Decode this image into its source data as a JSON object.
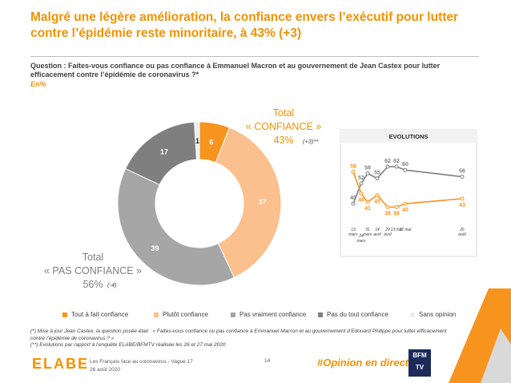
{
  "header": {
    "title": "Malgré une légère amélioration, la confiance envers l’exécutif pour lutter contre l’épidémie reste minoritaire, à 43% (+3)"
  },
  "question": {
    "text": "Question : Faites-vous confiance ou pas confiance à Emmanuel Macron et au gouvernement de Jean Castex pour lutter efficacement contre l’épidémie de coronavirus ?*",
    "unit": "En%"
  },
  "chart_data": [
    {
      "type": "pie",
      "categories": [
        "Tout à fait confiance",
        "Plutôt confiance",
        "Pas vraiment confiance",
        "Pas du tout confiance",
        "Sans opinion"
      ],
      "values": [
        6,
        37,
        39,
        17,
        1
      ],
      "colors": [
        "#f7941d",
        "#fbc08d",
        "#a6a6a6",
        "#7f7f7f",
        "#ededed"
      ]
    },
    {
      "type": "line",
      "title": "EVOLUTIONS",
      "categories": [
        "13 mars",
        "24 mars",
        "31 mars",
        "14 avril",
        "29 avril",
        "13 mai",
        "27 mai",
        "26 août"
      ],
      "series": [
        {
          "color": "#7f7f7f",
          "values": [
            40,
            52,
            58,
            55,
            62,
            62,
            60,
            56
          ]
        },
        {
          "color": "#f7941d",
          "values": [
            59,
            46,
            41,
            45,
            38,
            38,
            40,
            43
          ]
        }
      ]
    }
  ],
  "totals": [
    {
      "label": "Total",
      "name": "« CONFIANCE »",
      "value": "43%",
      "change": "(+3)**"
    },
    {
      "label": "Total",
      "name": "« PAS CONFIANCE »",
      "value": "56%",
      "change": "(-4)"
    }
  ],
  "notes": [
    "(*) Mise à jour Jean Castex, la question posée était : « Faites-vous confiance ou pas confiance à Emmanuel Macron et au gouvernement d’Edouard Philippe pour lutter efficacement contre l’épidémie de coronavirus ? »",
    "(**) Evolutions par rapport à l’enquête ELABE/BFMTV réalisée les 26 et 27 mai 2020"
  ],
  "footer": {
    "survey": "Les Français face au coronavirus - Vague 17",
    "date": "26 août 2020",
    "page": "14",
    "hashtag": "#Opinion en direct",
    "brand": "ELABE",
    "partner": "BFM TV"
  }
}
